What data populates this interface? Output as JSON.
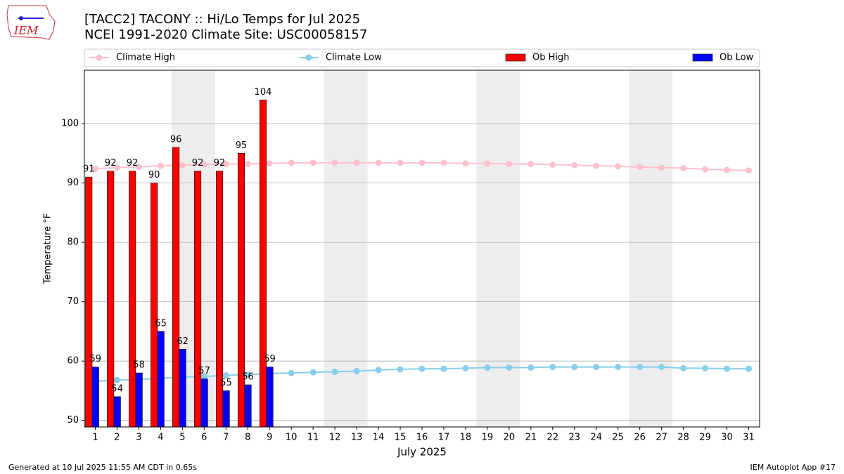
{
  "logo_text": "IEM",
  "chart_data": {
    "type": "bar",
    "title": "[TACC2] TACONY :: Hi/Lo Temps for Jul 2025",
    "subtitle": "NCEI 1991-2020 Climate Site: USC00058157",
    "xlabel": "July 2025",
    "ylabel": "Temperature °F",
    "categories": [
      "1",
      "2",
      "3",
      "4",
      "5",
      "6",
      "7",
      "8",
      "9",
      "10",
      "11",
      "12",
      "13",
      "14",
      "15",
      "16",
      "17",
      "18",
      "19",
      "20",
      "21",
      "22",
      "23",
      "24",
      "25",
      "26",
      "27",
      "28",
      "29",
      "30",
      "31"
    ],
    "series": [
      {
        "name": "Climate High",
        "kind": "line",
        "color": "#ffc0cb",
        "values": [
          92.4,
          92.6,
          92.7,
          92.9,
          93.0,
          93.1,
          93.2,
          93.2,
          93.3,
          93.4,
          93.4,
          93.4,
          93.4,
          93.4,
          93.4,
          93.4,
          93.4,
          93.3,
          93.3,
          93.2,
          93.2,
          93.1,
          93.0,
          92.9,
          92.8,
          92.7,
          92.6,
          92.5,
          92.3,
          92.2,
          92.1
        ]
      },
      {
        "name": "Climate Low",
        "kind": "line",
        "color": "#87ceeb",
        "values": [
          56.6,
          56.8,
          56.9,
          57.1,
          57.3,
          57.4,
          57.6,
          57.7,
          57.9,
          58.0,
          58.1,
          58.2,
          58.3,
          58.5,
          58.6,
          58.7,
          58.7,
          58.8,
          58.9,
          58.9,
          58.9,
          59.0,
          59.0,
          59.0,
          59.0,
          59.0,
          59.0,
          58.8,
          58.8,
          58.7,
          58.7
        ]
      },
      {
        "name": "Ob High",
        "kind": "bar",
        "color": "#ff0000",
        "values": [
          91,
          92,
          92,
          90,
          96,
          92,
          92,
          95,
          104,
          null,
          null,
          null,
          null,
          null,
          null,
          null,
          null,
          null,
          null,
          null,
          null,
          null,
          null,
          null,
          null,
          null,
          null,
          null,
          null,
          null,
          null
        ]
      },
      {
        "name": "Ob Low",
        "kind": "bar",
        "color": "#0000ff",
        "values": [
          59,
          54,
          58,
          65,
          62,
          57,
          55,
          56,
          59,
          null,
          null,
          null,
          null,
          null,
          null,
          null,
          null,
          null,
          null,
          null,
          null,
          null,
          null,
          null,
          null,
          null,
          null,
          null,
          null,
          null,
          null
        ]
      }
    ],
    "weekend_bands": [
      [
        5,
        6
      ],
      [
        12,
        13
      ],
      [
        19,
        20
      ],
      [
        26,
        27
      ]
    ],
    "ylim": [
      48.9,
      109
    ],
    "yticks": [
      50,
      60,
      70,
      80,
      90,
      100
    ],
    "grid": true,
    "legend": "top",
    "footer_left": "Generated at 10 Jul 2025 11:55 AM CDT in 0.65s",
    "footer_right": "IEM Autoplot App #17"
  }
}
